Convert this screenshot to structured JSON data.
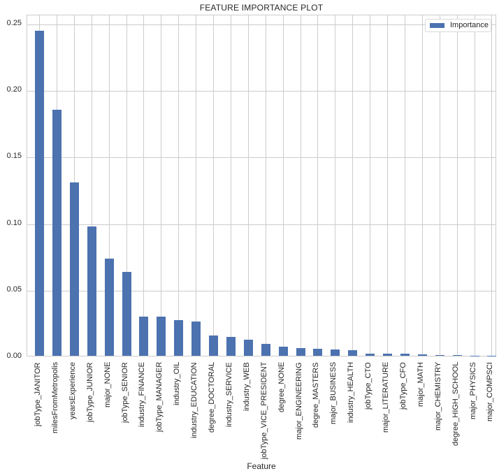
{
  "chart_data": {
    "type": "bar",
    "title": "FEATURE IMPORTANCE PLOT",
    "xlabel": "Feature",
    "ylabel": "",
    "ylim": [
      0,
      0.257
    ],
    "yticks": [
      "0.00",
      "0.05",
      "0.10",
      "0.15",
      "0.20",
      "0.25"
    ],
    "grid": true,
    "legend": {
      "position": "upper right",
      "entries": [
        "Importance"
      ]
    },
    "color": "#4c72b0",
    "categories": [
      "jobType_JANITOR",
      "milesFromMetropolis",
      "yearsExperience",
      "jobType_JUNIOR",
      "major_NONE",
      "jobType_SENIOR",
      "industry_FINANCE",
      "jobType_MANAGER",
      "industry_OIL",
      "industry_EDUCATION",
      "degree_DOCTORAL",
      "industry_SERVICE",
      "industry_WEB",
      "jobType_VICE_PRESIDENT",
      "degree_NONE",
      "major_ENGINEERING",
      "degree_MASTERS",
      "major_BUSINESS",
      "industry_HEALTH",
      "jobType_CTO",
      "major_LITERATURE",
      "jobType_CFO",
      "major_MATH",
      "major_CHEMISTRY",
      "degree_HIGH_SCHOOL",
      "major_PHYSICS",
      "major_COMPSCI"
    ],
    "series": [
      {
        "name": "Importance",
        "values": [
          0.244,
          0.185,
          0.13,
          0.097,
          0.073,
          0.063,
          0.0295,
          0.0295,
          0.027,
          0.026,
          0.015,
          0.014,
          0.012,
          0.009,
          0.007,
          0.006,
          0.005,
          0.0045,
          0.004,
          0.0017,
          0.0017,
          0.0017,
          0.0012,
          0.0006,
          0.0005,
          0.0001,
          0.0001
        ]
      }
    ]
  }
}
